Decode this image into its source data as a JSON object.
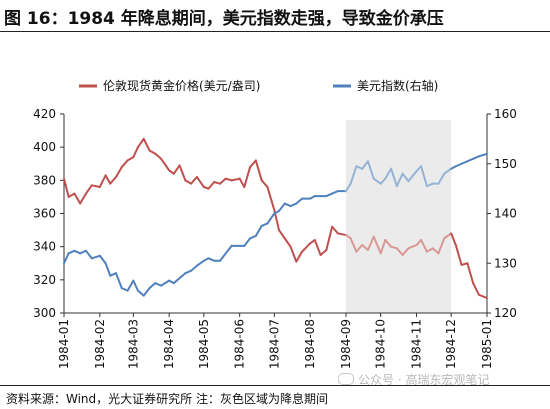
{
  "header": {
    "title": "图 16：1984 年降息期间，美元指数走强，导致金价承压"
  },
  "footer": {
    "source": "资料来源：Wind，光大证券研究所  注：灰色区域为降息期间",
    "watermark": "公众号 · 高瑞东宏观笔记"
  },
  "colors": {
    "gold": "#c0504d",
    "gold_light": "#d99795",
    "dollar": "#4f81bd",
    "dollar_light": "#95b3d7",
    "shade": "#ebebeb"
  },
  "chart_data": {
    "type": "line",
    "title": "",
    "xlabel": "",
    "ylabel": "",
    "x_ticks": [
      "1984-01",
      "1984-02",
      "1984-03",
      "1984-04",
      "1984-05",
      "1984-06",
      "1984-07",
      "1984-08",
      "1984-09",
      "1984-10",
      "1984-11",
      "1984-12",
      "1985-01"
    ],
    "xlim": [
      "1984-01-01",
      "1985-01-01"
    ],
    "ylim_left": [
      300,
      420
    ],
    "ylim_right": [
      120,
      160
    ],
    "y_ticks_left": [
      "300",
      "320",
      "340",
      "360",
      "380",
      "400",
      "420"
    ],
    "y_ticks_right": [
      "120",
      "130",
      "140",
      "150",
      "160"
    ],
    "shaded_range": [
      "1984-09-01",
      "1984-12-01"
    ],
    "legend_position": "top",
    "series": [
      {
        "name": "伦敦现货黄金价格(美元/盎司)",
        "axis": "left",
        "x": [
          "1984-01-01",
          "1984-01-05",
          "1984-01-10",
          "1984-01-15",
          "1984-01-20",
          "1984-01-25",
          "1984-02-01",
          "1984-02-06",
          "1984-02-10",
          "1984-02-15",
          "1984-02-20",
          "1984-02-25",
          "1984-03-01",
          "1984-03-05",
          "1984-03-10",
          "1984-03-15",
          "1984-03-20",
          "1984-03-25",
          "1984-04-01",
          "1984-04-05",
          "1984-04-10",
          "1984-04-15",
          "1984-04-20",
          "1984-04-25",
          "1984-05-01",
          "1984-05-05",
          "1984-05-10",
          "1984-05-15",
          "1984-05-20",
          "1984-05-25",
          "1984-06-01",
          "1984-06-05",
          "1984-06-10",
          "1984-06-15",
          "1984-06-20",
          "1984-06-25",
          "1984-07-01",
          "1984-07-05",
          "1984-07-10",
          "1984-07-15",
          "1984-07-20",
          "1984-07-25",
          "1984-08-01",
          "1984-08-05",
          "1984-08-10",
          "1984-08-15",
          "1984-08-20",
          "1984-08-25",
          "1984-09-01",
          "1984-09-05",
          "1984-09-10",
          "1984-09-15",
          "1984-09-20",
          "1984-09-25",
          "1984-10-01",
          "1984-10-05",
          "1984-10-10",
          "1984-10-15",
          "1984-10-20",
          "1984-10-25",
          "1984-11-01",
          "1984-11-05",
          "1984-11-10",
          "1984-11-15",
          "1984-11-20",
          "1984-11-25",
          "1984-12-01",
          "1984-12-05",
          "1984-12-10",
          "1984-12-15",
          "1984-12-20",
          "1984-12-25",
          "1985-01-01"
        ],
        "values": [
          381,
          370,
          372,
          366,
          372,
          377,
          376,
          383,
          378,
          382,
          388,
          392,
          394,
          400,
          405,
          398,
          396,
          393,
          386,
          384,
          389,
          380,
          378,
          382,
          376,
          375,
          379,
          378,
          381,
          380,
          381,
          376,
          388,
          392,
          380,
          376,
          362,
          350,
          345,
          340,
          331,
          337,
          342,
          344,
          335,
          338,
          352,
          348,
          347,
          345,
          337,
          341,
          338,
          346,
          336,
          344,
          340,
          339,
          335,
          339,
          341,
          344,
          337,
          339,
          336,
          345,
          348,
          341,
          329,
          330,
          318,
          311,
          309
        ]
      },
      {
        "name": "美元指数(右轴)",
        "axis": "right",
        "x": [
          "1984-01-01",
          "1984-01-05",
          "1984-01-10",
          "1984-01-15",
          "1984-01-20",
          "1984-01-25",
          "1984-02-01",
          "1984-02-06",
          "1984-02-10",
          "1984-02-15",
          "1984-02-20",
          "1984-02-25",
          "1984-03-01",
          "1984-03-05",
          "1984-03-10",
          "1984-03-15",
          "1984-03-20",
          "1984-03-25",
          "1984-04-01",
          "1984-04-05",
          "1984-04-10",
          "1984-04-15",
          "1984-04-20",
          "1984-04-25",
          "1984-05-01",
          "1984-05-05",
          "1984-05-10",
          "1984-05-15",
          "1984-05-20",
          "1984-05-25",
          "1984-06-01",
          "1984-06-05",
          "1984-06-10",
          "1984-06-15",
          "1984-06-20",
          "1984-06-25",
          "1984-07-01",
          "1984-07-05",
          "1984-07-10",
          "1984-07-15",
          "1984-07-20",
          "1984-07-25",
          "1984-08-01",
          "1984-08-05",
          "1984-08-10",
          "1984-08-15",
          "1984-08-20",
          "1984-08-25",
          "1984-09-01",
          "1984-09-05",
          "1984-09-10",
          "1984-09-15",
          "1984-09-20",
          "1984-09-25",
          "1984-10-01",
          "1984-10-05",
          "1984-10-10",
          "1984-10-15",
          "1984-10-20",
          "1984-10-25",
          "1984-11-01",
          "1984-11-05",
          "1984-11-10",
          "1984-11-15",
          "1984-11-20",
          "1984-11-25",
          "1984-12-01",
          "1984-12-05",
          "1984-12-10",
          "1984-12-15",
          "1984-12-20",
          "1984-12-25",
          "1985-01-01"
        ],
        "values": [
          130,
          132,
          132.5,
          132,
          132.5,
          131,
          131.5,
          130,
          127.5,
          128,
          125,
          124.5,
          126.5,
          124.5,
          123.5,
          125,
          126,
          125.5,
          126.5,
          126,
          127,
          128,
          128.5,
          129.5,
          130.5,
          131,
          130.5,
          130.5,
          132,
          133.5,
          133.5,
          133.5,
          135,
          135.5,
          137.5,
          138,
          140,
          140.5,
          142,
          141.5,
          142,
          143,
          143,
          143.5,
          143.5,
          143.5,
          144,
          144.5,
          144.5,
          146,
          149.5,
          149,
          150.5,
          147,
          146,
          147,
          149,
          145.5,
          148,
          146.5,
          148.5,
          149.5,
          145.5,
          146,
          146,
          148,
          149,
          149.5,
          150,
          150.5,
          151,
          151.5,
          152
        ]
      }
    ]
  }
}
